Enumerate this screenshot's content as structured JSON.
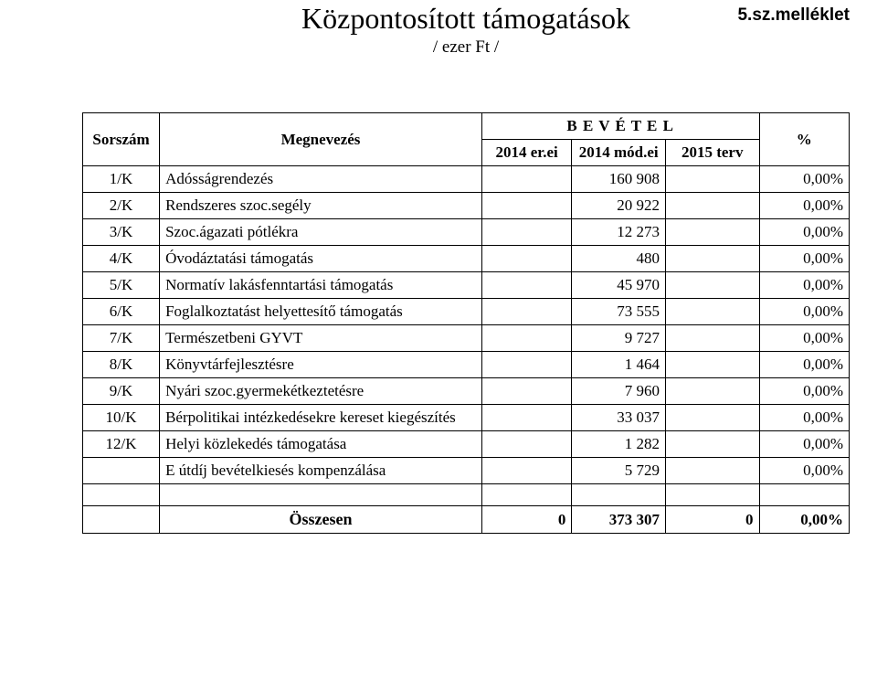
{
  "header": {
    "title": "Központosított támogatások",
    "subtitle": "/ ezer Ft /",
    "attachment": "5.sz.melléklet"
  },
  "table": {
    "headers": {
      "sorszam": "Sorszám",
      "megnevezes": "Megnevezés",
      "bevetel": "B E V É T E L",
      "percent": "%",
      "sub_2014e": "2014 er.ei",
      "sub_2014m": "2014 mód.ei",
      "sub_2015": "2015 terv"
    },
    "rows": [
      {
        "sor": "1/K",
        "meg": "Adósságrendezés",
        "v2014e": "",
        "v2014m": "160 908",
        "v2015": "",
        "pct": "0,00%"
      },
      {
        "sor": "2/K",
        "meg": "Rendszeres szoc.segély",
        "v2014e": "",
        "v2014m": "20 922",
        "v2015": "",
        "pct": "0,00%"
      },
      {
        "sor": "3/K",
        "meg": "Szoc.ágazati pótlékra",
        "v2014e": "",
        "v2014m": "12 273",
        "v2015": "",
        "pct": "0,00%"
      },
      {
        "sor": "4/K",
        "meg": "Óvodáztatási támogatás",
        "v2014e": "",
        "v2014m": "480",
        "v2015": "",
        "pct": "0,00%"
      },
      {
        "sor": "5/K",
        "meg": "Normatív lakásfenntartási támogatás",
        "v2014e": "",
        "v2014m": "45 970",
        "v2015": "",
        "pct": "0,00%"
      },
      {
        "sor": "6/K",
        "meg": "Foglalkoztatást helyettesítő támogatás",
        "v2014e": "",
        "v2014m": "73 555",
        "v2015": "",
        "pct": "0,00%"
      },
      {
        "sor": "7/K",
        "meg": "Természetbeni GYVT",
        "v2014e": "",
        "v2014m": "9 727",
        "v2015": "",
        "pct": "0,00%"
      },
      {
        "sor": "8/K",
        "meg": "Könyvtárfejlesztésre",
        "v2014e": "",
        "v2014m": "1 464",
        "v2015": "",
        "pct": "0,00%"
      },
      {
        "sor": "9/K",
        "meg": "Nyári szoc.gyermekétkeztetésre",
        "v2014e": "",
        "v2014m": "7 960",
        "v2015": "",
        "pct": "0,00%"
      },
      {
        "sor": "10/K",
        "meg": "Bérpolitikai intézkedésekre kereset kiegészítés",
        "v2014e": "",
        "v2014m": "33 037",
        "v2015": "",
        "pct": "0,00%"
      },
      {
        "sor": "12/K",
        "meg": "Helyi közlekedés támogatása",
        "v2014e": "",
        "v2014m": "1 282",
        "v2015": "",
        "pct": "0,00%"
      },
      {
        "sor": "",
        "meg": "E útdíj bevételkiesés kompenzálása",
        "v2014e": "",
        "v2014m": "5 729",
        "v2015": "",
        "pct": "0,00%"
      }
    ],
    "total": {
      "label": "Összesen",
      "v2014e": "0",
      "v2014m": "373 307",
      "v2015": "0",
      "pct": "0,00%"
    }
  }
}
